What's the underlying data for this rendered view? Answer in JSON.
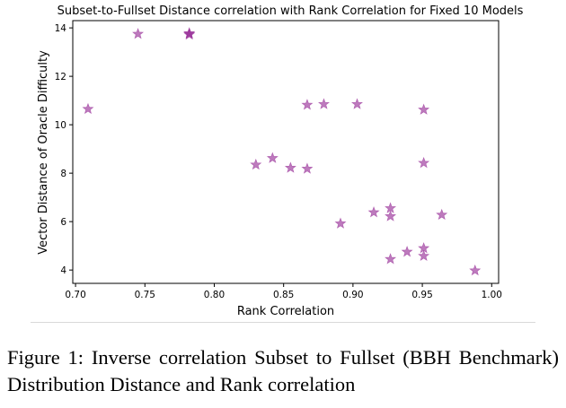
{
  "chart_data": {
    "type": "scatter",
    "title": "Subset-to-Fullset Distance correlation with Rank Correlation for Fixed 10 Models",
    "xlabel": "Rank Correlation",
    "ylabel": "Vector Distance of Oracle Difficulty",
    "xlim": [
      0.698,
      1.005
    ],
    "ylim": [
      3.45,
      14.3
    ],
    "xticks": [
      0.7,
      0.75,
      0.8,
      0.85,
      0.9,
      0.95,
      1.0
    ],
    "xtick_labels": [
      "0.70",
      "0.75",
      "0.80",
      "0.85",
      "0.90",
      "0.95",
      "1.00"
    ],
    "yticks": [
      4,
      6,
      8,
      10,
      12,
      14
    ],
    "ytick_labels": [
      "4",
      "6",
      "8",
      "10",
      "12",
      "14"
    ],
    "grid": false,
    "marker": "star",
    "color": "#993399",
    "points": [
      {
        "x": 0.709,
        "y": 10.65
      },
      {
        "x": 0.745,
        "y": 13.75
      },
      {
        "x": 0.782,
        "y": 13.75
      },
      {
        "x": 0.782,
        "y": 13.78
      },
      {
        "x": 0.782,
        "y": 13.72
      },
      {
        "x": 0.83,
        "y": 8.35
      },
      {
        "x": 0.842,
        "y": 8.62
      },
      {
        "x": 0.855,
        "y": 8.22
      },
      {
        "x": 0.867,
        "y": 10.82
      },
      {
        "x": 0.867,
        "y": 8.18
      },
      {
        "x": 0.879,
        "y": 10.85
      },
      {
        "x": 0.891,
        "y": 5.92
      },
      {
        "x": 0.903,
        "y": 10.85
      },
      {
        "x": 0.915,
        "y": 6.38
      },
      {
        "x": 0.927,
        "y": 6.55
      },
      {
        "x": 0.927,
        "y": 6.22
      },
      {
        "x": 0.927,
        "y": 4.45
      },
      {
        "x": 0.939,
        "y": 4.75
      },
      {
        "x": 0.951,
        "y": 10.62
      },
      {
        "x": 0.951,
        "y": 8.42
      },
      {
        "x": 0.951,
        "y": 4.9
      },
      {
        "x": 0.951,
        "y": 4.58
      },
      {
        "x": 0.964,
        "y": 6.28
      },
      {
        "x": 0.988,
        "y": 3.98
      }
    ]
  },
  "caption": "Figure 1: Inverse correlation Subset to Fullset (BBH Benchmark) Distribution Distance and Rank correlation"
}
